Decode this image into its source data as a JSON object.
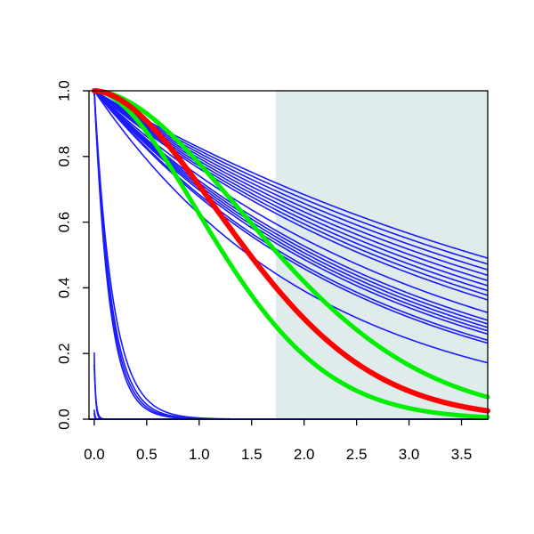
{
  "chart_data": {
    "type": "line",
    "title": "",
    "xlabel": "",
    "ylabel": "",
    "xlim": [
      -0.05,
      3.75
    ],
    "ylim": [
      0.0,
      1.0
    ],
    "grid": false,
    "legend": "none",
    "x_ticks": [
      0.0,
      0.5,
      1.0,
      1.5,
      2.0,
      2.5,
      3.0,
      3.5
    ],
    "x_tick_labels": [
      "0.0",
      "0.5",
      "1.0",
      "1.5",
      "2.0",
      "2.5",
      "3.0",
      "3.5"
    ],
    "y_ticks": [
      0.0,
      0.2,
      0.4,
      0.6,
      0.8,
      1.0
    ],
    "y_tick_labels": [
      "0.0",
      "0.2",
      "0.4",
      "0.6",
      "0.8",
      "1.0"
    ],
    "shaded_region": {
      "x_from": 1.73,
      "x_to": 3.75,
      "color": "#e0ecec"
    },
    "series_family": {
      "type": "exp",
      "color": "#1a1aff",
      "rates": [
        0.19,
        0.2,
        0.21,
        0.22,
        0.23,
        0.24,
        0.25,
        0.26,
        0.27,
        0.3,
        0.32,
        0.33,
        0.34,
        0.35,
        0.36,
        0.38,
        0.39,
        0.47
      ]
    },
    "series": [
      {
        "type": "exp",
        "rate": 5.6,
        "x0": 0.0,
        "color": "#1a1aff",
        "width": 1.6
      },
      {
        "type": "exp",
        "rate": 6.2,
        "x0": 0.0,
        "color": "#1a1aff",
        "width": 1.6
      },
      {
        "type": "exp",
        "rate": 6.6,
        "x0": 0.0,
        "color": "#1a1aff",
        "width": 1.6
      },
      {
        "type": "exp",
        "rate": 7.0,
        "x0": 0.0,
        "color": "#1a1aff",
        "width": 1.6
      },
      {
        "type": "exp",
        "rate": 60.0,
        "x0": -0.03,
        "color": "#1a1aff",
        "width": 1.6
      },
      {
        "type": "exp",
        "rate": 80.0,
        "x0": -0.02,
        "color": "#1a1aff",
        "width": 1.6
      },
      {
        "type": "exp",
        "rate": 120.0,
        "x0": -0.03,
        "color": "#1a1aff",
        "width": 1.6
      },
      {
        "type": "exp",
        "rate": 200.0,
        "x0": -0.02,
        "color": "#1a1aff",
        "width": 1.6
      },
      {
        "type": "baseline",
        "y": 0.0,
        "color": "#1a1aff",
        "width": 2.0
      },
      {
        "type": "gompertz",
        "a": 0.25,
        "b": 1.8,
        "color": "#00ee00",
        "width": 5
      },
      {
        "type": "gompertz",
        "a": 0.47,
        "b": 1.8,
        "color": "#00ee00",
        "width": 5
      },
      {
        "type": "gompertz",
        "a": 0.34,
        "b": 1.8,
        "color": "#ff0000",
        "width": 6
      }
    ]
  }
}
